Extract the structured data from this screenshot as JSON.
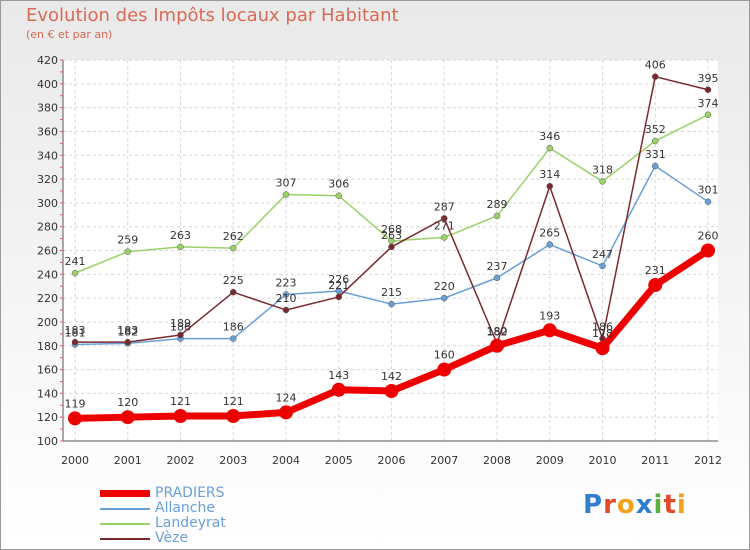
{
  "page": {
    "title": "Evolution des Impôts locaux par Habitant",
    "subtitle": "(en € et par an)",
    "logo_text": "Proxiti"
  },
  "chart_data": {
    "type": "line",
    "title": "Evolution des Impôts locaux par Habitant",
    "subtitle": "(en € et par an)",
    "xlabel": "",
    "ylabel": "",
    "ylim": [
      100,
      420
    ],
    "y_ticks": [
      100,
      120,
      140,
      160,
      180,
      200,
      220,
      240,
      260,
      280,
      300,
      320,
      340,
      360,
      380,
      400,
      420
    ],
    "grid": true,
    "legend_position": "bottom-left",
    "categories": [
      "2000",
      "2001",
      "2002",
      "2003",
      "2004",
      "2005",
      "2006",
      "2007",
      "2008",
      "2009",
      "2010",
      "2011",
      "2012"
    ],
    "series": [
      {
        "name": "PRADIERS",
        "color": "#ee0000",
        "values": [
          119,
          120,
          121,
          121,
          124,
          143,
          142,
          160,
          180,
          193,
          178,
          231,
          260
        ]
      },
      {
        "name": "Allanche",
        "color": "#6aa0d8",
        "values": [
          181,
          182,
          186,
          186,
          223,
          226,
          215,
          220,
          237,
          265,
          247,
          331,
          301
        ]
      },
      {
        "name": "Landeyrat",
        "color": "#9ad26a",
        "values": [
          241,
          259,
          263,
          262,
          307,
          306,
          268,
          271,
          289,
          346,
          318,
          352,
          374
        ]
      },
      {
        "name": "Vèze",
        "color": "#7a2a2e",
        "values": [
          183,
          183,
          189,
          225,
          210,
          221,
          263,
          287,
          182,
          314,
          186,
          406,
          395
        ]
      }
    ]
  }
}
